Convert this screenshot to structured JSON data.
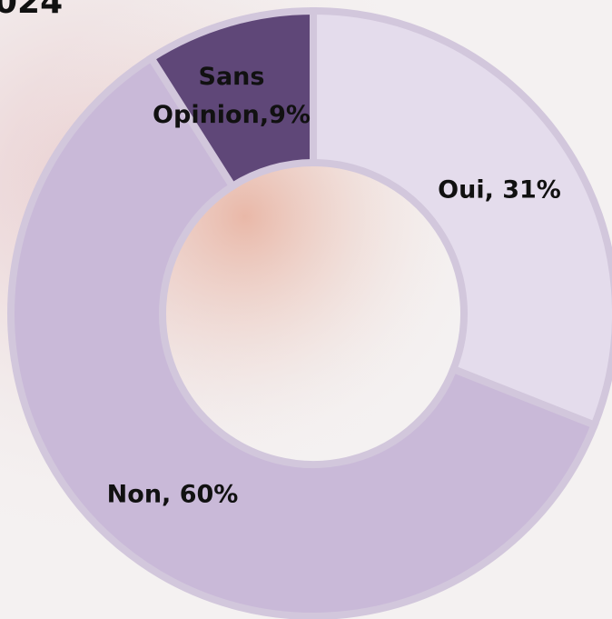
{
  "chart_data": {
    "type": "donut",
    "title": "024",
    "values": [
      31,
      60,
      9
    ],
    "value_labels": [
      "Oui, 31%",
      "Non, 60%",
      "Sans Opinion,9%"
    ],
    "colors": [
      "#e4dcec",
      "#c9b9d8",
      "#5f4778"
    ]
  }
}
